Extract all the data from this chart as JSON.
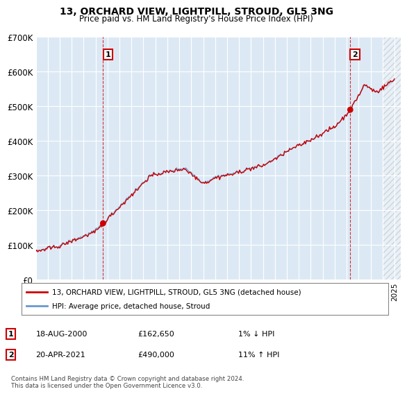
{
  "title": "13, ORCHARD VIEW, LIGHTPILL, STROUD, GL5 3NG",
  "subtitle": "Price paid vs. HM Land Registry's House Price Index (HPI)",
  "legend_line1": "13, ORCHARD VIEW, LIGHTPILL, STROUD, GL5 3NG (detached house)",
  "legend_line2": "HPI: Average price, detached house, Stroud",
  "transaction1_date": "18-AUG-2000",
  "transaction1_price": "£162,650",
  "transaction1_hpi": "1% ↓ HPI",
  "transaction2_date": "20-APR-2021",
  "transaction2_price": "£490,000",
  "transaction2_hpi": "11% ↑ HPI",
  "footer": "Contains HM Land Registry data © Crown copyright and database right 2024.\nThis data is licensed under the Open Government Licence v3.0.",
  "hpi_color": "#6699cc",
  "price_color": "#cc0000",
  "marker_color": "#cc0000",
  "ylim_min": 0,
  "ylim_max": 700000,
  "yticks": [
    0,
    100000,
    200000,
    300000,
    400000,
    500000,
    600000,
    700000
  ],
  "ytick_labels": [
    "£0",
    "£100K",
    "£200K",
    "£300K",
    "£400K",
    "£500K",
    "£600K",
    "£700K"
  ],
  "transaction1_year": 2000.625,
  "transaction1_value": 162650,
  "transaction2_year": 2021.3,
  "transaction2_value": 490000,
  "background_color": "#ffffff",
  "plot_bg_color": "#dce9f5"
}
